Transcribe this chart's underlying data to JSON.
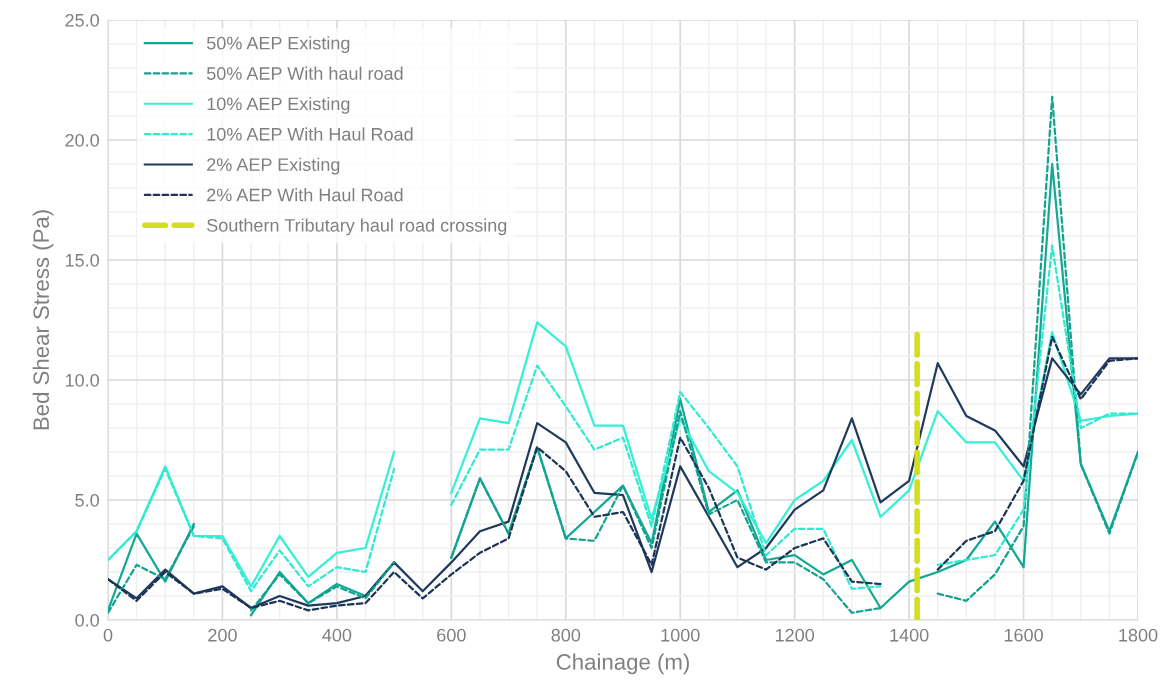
{
  "chart_data": {
    "type": "line",
    "xlabel": "Chainage (m)",
    "ylabel": "Bed Shear Stress (Pa)",
    "x": [
      0,
      50,
      100,
      150,
      200,
      250,
      300,
      350,
      400,
      450,
      500,
      550,
      600,
      650,
      700,
      750,
      800,
      850,
      900,
      950,
      1000,
      1050,
      1100,
      1150,
      1200,
      1250,
      1300,
      1350,
      1400,
      1450,
      1500,
      1550,
      1600,
      1650,
      1700,
      1750,
      1800
    ],
    "series": [
      {
        "name": "50% AEP Existing",
        "color": "#14a894",
        "line_style": "solid",
        "values": [
          0.4,
          3.6,
          1.6,
          4.0,
          null,
          0.2,
          2.0,
          0.7,
          1.5,
          1.0,
          2.4,
          null,
          2.6,
          5.9,
          3.6,
          7.2,
          3.4,
          4.5,
          5.6,
          3.2,
          9.2,
          4.5,
          5.4,
          2.5,
          2.7,
          1.9,
          2.5,
          0.5,
          1.6,
          2.0,
          2.5,
          4.1,
          2.2,
          19.0,
          6.5,
          3.7,
          7.0
        ]
      },
      {
        "name": "50% AEP With haul road",
        "color": "#10a390",
        "line_style": "dashed",
        "values": [
          0.3,
          2.3,
          1.7,
          3.9,
          null,
          0.4,
          1.9,
          0.7,
          1.4,
          0.9,
          2.4,
          null,
          2.6,
          5.9,
          3.6,
          7.2,
          3.4,
          3.3,
          5.6,
          3.0,
          8.7,
          4.4,
          5.0,
          2.4,
          2.4,
          1.7,
          0.3,
          0.5,
          null,
          1.1,
          0.8,
          1.9,
          3.9,
          21.8,
          6.5,
          3.6,
          7.0
        ]
      },
      {
        "name": "10% AEP Existing",
        "color": "#33f0d6",
        "line_style": "solid",
        "values": [
          2.5,
          3.7,
          6.4,
          3.5,
          3.5,
          1.4,
          3.5,
          1.8,
          2.8,
          3.0,
          7.0,
          null,
          5.3,
          8.4,
          8.2,
          12.4,
          11.4,
          8.1,
          8.1,
          4.2,
          8.4,
          6.2,
          5.3,
          3.2,
          5.0,
          5.8,
          7.5,
          4.3,
          5.4,
          8.7,
          7.4,
          7.4,
          5.8,
          12.0,
          8.3,
          8.5,
          8.6
        ]
      },
      {
        "name": "10% AEP With Haul Road",
        "color": "#2eead0",
        "line_style": "dashed",
        "values": [
          2.5,
          3.7,
          6.3,
          3.5,
          3.4,
          1.2,
          2.9,
          1.4,
          2.2,
          2.0,
          6.3,
          null,
          4.8,
          7.1,
          7.1,
          10.6,
          8.9,
          7.1,
          7.6,
          3.9,
          9.5,
          8.0,
          6.4,
          2.7,
          3.8,
          3.8,
          1.3,
          1.4,
          null,
          2.3,
          2.5,
          2.7,
          4.6,
          15.6,
          8.0,
          8.6,
          8.6
        ]
      },
      {
        "name": "2% AEP Existing",
        "color": "#1f3a5c",
        "line_style": "solid",
        "values": [
          1.7,
          0.9,
          2.1,
          1.1,
          1.4,
          0.5,
          1.0,
          0.6,
          0.7,
          1.0,
          2.4,
          1.2,
          2.4,
          3.7,
          4.1,
          8.2,
          7.4,
          5.3,
          5.2,
          2.0,
          6.4,
          4.3,
          2.2,
          3.0,
          4.6,
          5.4,
          8.4,
          4.9,
          5.8,
          10.7,
          8.5,
          7.9,
          6.4,
          10.9,
          9.4,
          10.9,
          10.9
        ]
      },
      {
        "name": "2% AEP With Haul Road",
        "color": "#1b3556",
        "line_style": "dashed",
        "values": [
          1.7,
          0.8,
          2.0,
          1.1,
          1.3,
          0.5,
          0.8,
          0.4,
          0.6,
          0.7,
          2.0,
          0.9,
          1.9,
          2.8,
          3.4,
          7.2,
          6.2,
          4.3,
          4.5,
          2.3,
          7.6,
          5.5,
          2.6,
          2.1,
          3.0,
          3.4,
          1.6,
          1.5,
          null,
          2.1,
          3.3,
          3.7,
          5.8,
          11.8,
          9.2,
          10.8,
          10.9
        ]
      },
      {
        "name": "Southern Tributary haul road crossing",
        "color": "#d4dd1e",
        "line_style": "dashed",
        "x": [
          1414,
          1414
        ],
        "values": [
          0,
          12
        ]
      }
    ],
    "xlim": [
      0,
      1800
    ],
    "xticks": [
      0,
      200,
      400,
      600,
      800,
      1000,
      1200,
      1400,
      1600,
      1800
    ],
    "ylim": [
      0,
      25
    ],
    "yticks": [
      {
        "value": 0,
        "label": "0.0"
      },
      {
        "value": 5,
        "label": "5.0"
      },
      {
        "value": 10,
        "label": "10.0"
      },
      {
        "value": 15,
        "label": "15.0"
      },
      {
        "value": 20,
        "label": "20.0"
      },
      {
        "value": 25,
        "label": "25.0"
      }
    ],
    "grid": true,
    "legend": "top left",
    "marker": "none"
  }
}
